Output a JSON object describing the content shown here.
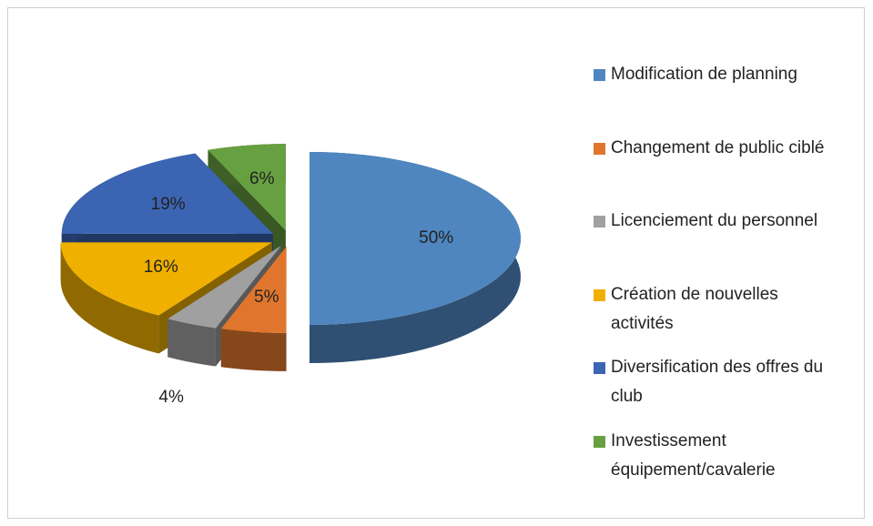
{
  "chart_data": {
    "type": "pie3d",
    "categories": [
      "Modification de planning",
      "Changement de public ciblé",
      "Licenciement du personnel",
      "Création de nouvelles activités",
      "Diversification des offres du club",
      "Investissement équipement/cavalerie"
    ],
    "values": [
      50,
      5,
      4,
      16,
      19,
      6
    ],
    "value_labels": [
      "50%",
      "5%",
      "4%",
      "16%",
      "19%",
      "6%"
    ],
    "colors": [
      "#4f86c0",
      "#e0762d",
      "#a0a0a0",
      "#f0b000",
      "#3b64b3",
      "#67a040"
    ],
    "legend": "right"
  }
}
